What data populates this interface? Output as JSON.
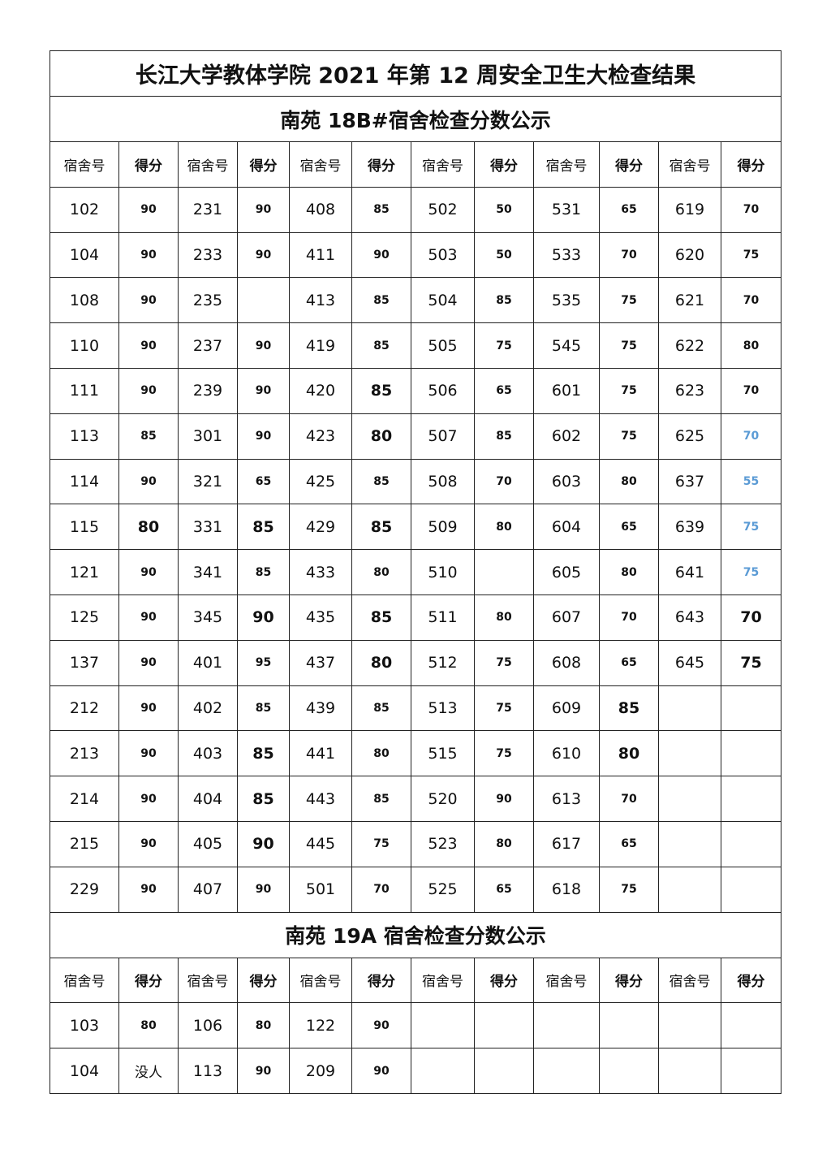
{
  "title": "长江大学教体学院 2021 年第 12 周安全卫生大检查结果",
  "headers": {
    "room": "宿舍号",
    "score": "得分"
  },
  "colors": {
    "highlight": "#5b9bd5"
  },
  "sections": [
    {
      "subtitle": "南苑 18B#宿舍检查分数公示",
      "rows": [
        [
          {
            "room": "102",
            "score": "90"
          },
          {
            "room": "231",
            "score": "90"
          },
          {
            "room": "408",
            "score": "85"
          },
          {
            "room": "502",
            "score": "50"
          },
          {
            "room": "531",
            "score": "65"
          },
          {
            "room": "619",
            "score": "70"
          }
        ],
        [
          {
            "room": "104",
            "score": "90"
          },
          {
            "room": "233",
            "score": "90"
          },
          {
            "room": "411",
            "score": "90"
          },
          {
            "room": "503",
            "score": "50"
          },
          {
            "room": "533",
            "score": "70"
          },
          {
            "room": "620",
            "score": "75"
          }
        ],
        [
          {
            "room": "108",
            "score": "90"
          },
          {
            "room": "235",
            "score": ""
          },
          {
            "room": "413",
            "score": "85"
          },
          {
            "room": "504",
            "score": "85"
          },
          {
            "room": "535",
            "score": "75"
          },
          {
            "room": "621",
            "score": "70"
          }
        ],
        [
          {
            "room": "110",
            "score": "90"
          },
          {
            "room": "237",
            "score": "90"
          },
          {
            "room": "419",
            "score": "85"
          },
          {
            "room": "505",
            "score": "75"
          },
          {
            "room": "545",
            "score": "75"
          },
          {
            "room": "622",
            "score": "80"
          }
        ],
        [
          {
            "room": "111",
            "score": "90"
          },
          {
            "room": "239",
            "score": "90"
          },
          {
            "room": "420",
            "score": "85",
            "size": "large"
          },
          {
            "room": "506",
            "score": "65"
          },
          {
            "room": "601",
            "score": "75"
          },
          {
            "room": "623",
            "score": "70"
          }
        ],
        [
          {
            "room": "113",
            "score": "85"
          },
          {
            "room": "301",
            "score": "90"
          },
          {
            "room": "423",
            "score": "80",
            "size": "large"
          },
          {
            "room": "507",
            "score": "85"
          },
          {
            "room": "602",
            "score": "75"
          },
          {
            "room": "625",
            "score": "70",
            "color": "#5b9bd5"
          }
        ],
        [
          {
            "room": "114",
            "score": "90"
          },
          {
            "room": "321",
            "score": "65"
          },
          {
            "room": "425",
            "score": "85"
          },
          {
            "room": "508",
            "score": "70"
          },
          {
            "room": "603",
            "score": "80"
          },
          {
            "room": "637",
            "score": "55",
            "color": "#5b9bd5"
          }
        ],
        [
          {
            "room": "115",
            "score": "80",
            "size": "large"
          },
          {
            "room": "331",
            "score": "85",
            "size": "large"
          },
          {
            "room": "429",
            "score": "85",
            "size": "large"
          },
          {
            "room": "509",
            "score": "80"
          },
          {
            "room": "604",
            "score": "65"
          },
          {
            "room": "639",
            "score": "75",
            "color": "#5b9bd5"
          }
        ],
        [
          {
            "room": "121",
            "score": "90"
          },
          {
            "room": "341",
            "score": "85"
          },
          {
            "room": "433",
            "score": "80"
          },
          {
            "room": "510",
            "score": ""
          },
          {
            "room": "605",
            "score": "80"
          },
          {
            "room": "641",
            "score": "75",
            "color": "#5b9bd5"
          }
        ],
        [
          {
            "room": "125",
            "score": "90"
          },
          {
            "room": "345",
            "score": "90",
            "size": "large"
          },
          {
            "room": "435",
            "score": "85",
            "size": "large"
          },
          {
            "room": "511",
            "score": "80"
          },
          {
            "room": "607",
            "score": "70"
          },
          {
            "room": "643",
            "score": "70",
            "size": "large"
          }
        ],
        [
          {
            "room": "137",
            "score": "90"
          },
          {
            "room": "401",
            "score": "95"
          },
          {
            "room": "437",
            "score": "80",
            "size": "large"
          },
          {
            "room": "512",
            "score": "75"
          },
          {
            "room": "608",
            "score": "65"
          },
          {
            "room": "645",
            "score": "75",
            "size": "large"
          }
        ],
        [
          {
            "room": "212",
            "score": "90"
          },
          {
            "room": "402",
            "score": "85"
          },
          {
            "room": "439",
            "score": "85"
          },
          {
            "room": "513",
            "score": "75"
          },
          {
            "room": "609",
            "score": "85",
            "size": "large"
          },
          {
            "room": "",
            "score": ""
          }
        ],
        [
          {
            "room": "213",
            "score": "90"
          },
          {
            "room": "403",
            "score": "85",
            "size": "large"
          },
          {
            "room": "441",
            "score": "80"
          },
          {
            "room": "515",
            "score": "75"
          },
          {
            "room": "610",
            "score": "80",
            "size": "large"
          },
          {
            "room": "",
            "score": ""
          }
        ],
        [
          {
            "room": "214",
            "score": "90"
          },
          {
            "room": "404",
            "score": "85",
            "size": "large"
          },
          {
            "room": "443",
            "score": "85"
          },
          {
            "room": "520",
            "score": "90"
          },
          {
            "room": "613",
            "score": "70"
          },
          {
            "room": "",
            "score": ""
          }
        ],
        [
          {
            "room": "215",
            "score": "90"
          },
          {
            "room": "405",
            "score": "90",
            "size": "large"
          },
          {
            "room": "445",
            "score": "75"
          },
          {
            "room": "523",
            "score": "80"
          },
          {
            "room": "617",
            "score": "65"
          },
          {
            "room": "",
            "score": ""
          }
        ],
        [
          {
            "room": "229",
            "score": "90"
          },
          {
            "room": "407",
            "score": "90"
          },
          {
            "room": "501",
            "score": "70"
          },
          {
            "room": "525",
            "score": "65"
          },
          {
            "room": "618",
            "score": "75"
          },
          {
            "room": "",
            "score": ""
          }
        ]
      ]
    },
    {
      "subtitle": "南苑 19A 宿舍检查分数公示",
      "rows": [
        [
          {
            "room": "103",
            "score": "80"
          },
          {
            "room": "106",
            "score": "80"
          },
          {
            "room": "122",
            "score": "90"
          },
          {
            "room": "",
            "score": ""
          },
          {
            "room": "",
            "score": ""
          },
          {
            "room": "",
            "score": ""
          }
        ],
        [
          {
            "room": "104",
            "score": "没人",
            "weight": "normal"
          },
          {
            "room": "113",
            "score": "90"
          },
          {
            "room": "209",
            "score": "90"
          },
          {
            "room": "",
            "score": ""
          },
          {
            "room": "",
            "score": ""
          },
          {
            "room": "",
            "score": ""
          }
        ]
      ]
    }
  ]
}
